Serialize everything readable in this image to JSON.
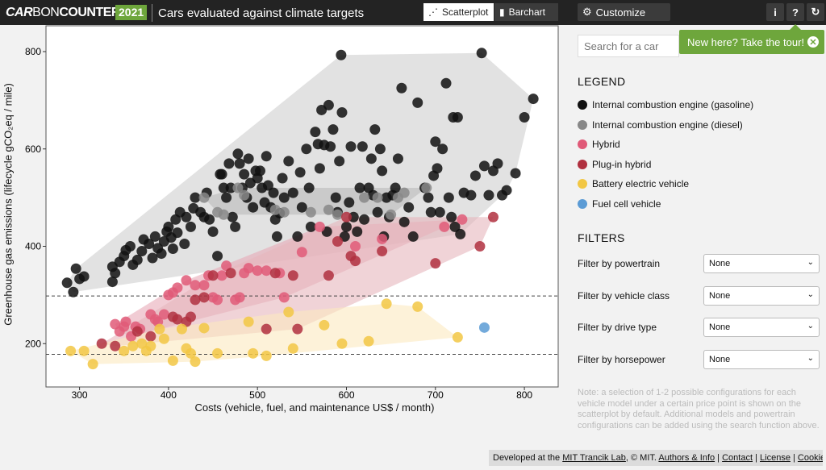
{
  "header": {
    "logo": {
      "part1": "CAR",
      "part2": "BON",
      "part3": "COUNTER"
    },
    "year": "2021",
    "title": "Cars evaluated against climate targets",
    "views": [
      {
        "label": "Scatterplot",
        "icon": "scatter-icon",
        "active": true
      },
      {
        "label": "Barchart",
        "icon": "bar-chart-icon",
        "active": false
      }
    ],
    "customize": "Customize",
    "icons": [
      "info-icon",
      "help-icon",
      "refresh-icon"
    ]
  },
  "tour": {
    "label": "New here? Take the tour!",
    "close": "✕"
  },
  "search": {
    "placeholder": "Search for a car"
  },
  "legend": {
    "title": "LEGEND",
    "items": [
      {
        "label": "Internal combustion engine (gasoline)",
        "color": "#111111"
      },
      {
        "label": "Internal combustion engine (diesel)",
        "color": "#888888"
      },
      {
        "label": "Hybrid",
        "color": "#e05a78"
      },
      {
        "label": "Plug-in hybrid",
        "color": "#b0303f"
      },
      {
        "label": "Battery electric vehicle",
        "color": "#f2c744"
      },
      {
        "label": "Fuel cell vehicle",
        "color": "#5b9bd5"
      }
    ]
  },
  "filters": {
    "title": "FILTERS",
    "items": [
      {
        "label": "Filter by powertrain",
        "value": "None"
      },
      {
        "label": "Filter by vehicle class",
        "value": "None"
      },
      {
        "label": "Filter by drive type",
        "value": "None"
      },
      {
        "label": "Filter by horsepower",
        "value": "None"
      }
    ]
  },
  "note": "Note: a selection of 1-2 possible configurations for each vehicle model under a certain price point is shown on the scatterplot by default. Additional models and powertrain configurations can be added using the search function above.",
  "footer": {
    "prefix": "Developed at the ",
    "lab": "MIT Trancik Lab",
    "mid": ", © MIT. ",
    "links": [
      "Authors & Info",
      "Contact",
      "License",
      "Cookies"
    ]
  },
  "chart_data": {
    "type": "scatter",
    "xlabel": "Costs (vehicle, fuel, and maintenance US$ / month)",
    "ylabel": "Greenhouse gas emissions (lifecycle gCO₂eq / mile)",
    "xlim": [
      236,
      838
    ],
    "ylim": [
      111,
      853
    ],
    "xticks": [
      300,
      400,
      500,
      600,
      700,
      800
    ],
    "yticks": [
      200,
      400,
      600,
      800
    ],
    "reference_lines": [
      298,
      178
    ],
    "grid": false,
    "series": [
      {
        "name": "Internal combustion engine (gasoline)",
        "color": "#111111",
        "hull": "#cfcfcf",
        "points": [
          [
            286,
            325
          ],
          [
            293,
            306
          ],
          [
            296,
            354
          ],
          [
            300,
            333
          ],
          [
            305,
            338
          ],
          [
            337,
            327
          ],
          [
            337,
            358
          ],
          [
            340,
            345
          ],
          [
            345,
            368
          ],
          [
            350,
            380
          ],
          [
            352,
            392
          ],
          [
            357,
            400
          ],
          [
            360,
            362
          ],
          [
            365,
            372
          ],
          [
            370,
            390
          ],
          [
            372,
            414
          ],
          [
            378,
            405
          ],
          [
            382,
            376
          ],
          [
            385,
            420
          ],
          [
            388,
            396
          ],
          [
            392,
            385
          ],
          [
            395,
            410
          ],
          [
            398,
            430
          ],
          [
            400,
            440
          ],
          [
            403,
            418
          ],
          [
            405,
            395
          ],
          [
            408,
            455
          ],
          [
            410,
            428
          ],
          [
            413,
            470
          ],
          [
            418,
            405
          ],
          [
            420,
            460
          ],
          [
            425,
            440
          ],
          [
            428,
            478
          ],
          [
            430,
            500
          ],
          [
            436,
            470
          ],
          [
            440,
            460
          ],
          [
            443,
            510
          ],
          [
            446,
            455
          ],
          [
            450,
            430
          ],
          [
            455,
            380
          ],
          [
            458,
            548
          ],
          [
            460,
            548
          ],
          [
            462,
            520
          ],
          [
            465,
            500
          ],
          [
            468,
            570
          ],
          [
            470,
            520
          ],
          [
            472,
            460
          ],
          [
            475,
            440
          ],
          [
            478,
            590
          ],
          [
            480,
            570
          ],
          [
            483,
            520
          ],
          [
            485,
            548
          ],
          [
            488,
            500
          ],
          [
            490,
            580
          ],
          [
            492,
            530
          ],
          [
            495,
            480
          ],
          [
            498,
            555
          ],
          [
            500,
            540
          ],
          [
            503,
            555
          ],
          [
            505,
            520
          ],
          [
            508,
            490
          ],
          [
            510,
            585
          ],
          [
            512,
            525
          ],
          [
            515,
            480
          ],
          [
            518,
            510
          ],
          [
            520,
            455
          ],
          [
            522,
            420
          ],
          [
            525,
            468
          ],
          [
            528,
            540
          ],
          [
            530,
            500
          ],
          [
            535,
            575
          ],
          [
            540,
            510
          ],
          [
            545,
            420
          ],
          [
            548,
            552
          ],
          [
            550,
            480
          ],
          [
            555,
            600
          ],
          [
            558,
            520
          ],
          [
            560,
            440
          ],
          [
            565,
            635
          ],
          [
            568,
            610
          ],
          [
            570,
            560
          ],
          [
            572,
            680
          ],
          [
            575,
            608
          ],
          [
            578,
            430
          ],
          [
            580,
            690
          ],
          [
            582,
            605
          ],
          [
            585,
            640
          ],
          [
            588,
            500
          ],
          [
            590,
            470
          ],
          [
            592,
            575
          ],
          [
            594,
            793
          ],
          [
            595,
            675
          ],
          [
            598,
            420
          ],
          [
            600,
            440
          ],
          [
            603,
            490
          ],
          [
            605,
            605
          ],
          [
            608,
            460
          ],
          [
            612,
            430
          ],
          [
            615,
            520
          ],
          [
            618,
            605
          ],
          [
            620,
            455
          ],
          [
            625,
            520
          ],
          [
            628,
            580
          ],
          [
            630,
            505
          ],
          [
            632,
            640
          ],
          [
            635,
            470
          ],
          [
            638,
            600
          ],
          [
            640,
            555
          ],
          [
            642,
            420
          ],
          [
            645,
            500
          ],
          [
            648,
            460
          ],
          [
            652,
            505
          ],
          [
            655,
            520
          ],
          [
            658,
            580
          ],
          [
            662,
            725
          ],
          [
            665,
            450
          ],
          [
            670,
            480
          ],
          [
            675,
            420
          ],
          [
            680,
            695
          ],
          [
            688,
            520
          ],
          [
            692,
            500
          ],
          [
            695,
            470
          ],
          [
            698,
            545
          ],
          [
            700,
            615
          ],
          [
            702,
            560
          ],
          [
            705,
            470
          ],
          [
            708,
            600
          ],
          [
            712,
            735
          ],
          [
            715,
            500
          ],
          [
            718,
            460
          ],
          [
            720,
            665
          ],
          [
            722,
            440
          ],
          [
            725,
            665
          ],
          [
            728,
            425
          ],
          [
            732,
            510
          ],
          [
            740,
            505
          ],
          [
            745,
            545
          ],
          [
            752,
            797
          ],
          [
            755,
            565
          ],
          [
            760,
            505
          ],
          [
            765,
            555
          ],
          [
            770,
            570
          ],
          [
            775,
            505
          ],
          [
            780,
            515
          ],
          [
            790,
            550
          ],
          [
            800,
            665
          ],
          [
            810,
            703
          ]
        ]
      },
      {
        "name": "Internal combustion engine (diesel)",
        "color": "#888888",
        "hull": "#bbbbbb",
        "points": [
          [
            440,
            500
          ],
          [
            455,
            470
          ],
          [
            462,
            465
          ],
          [
            478,
            520
          ],
          [
            485,
            505
          ],
          [
            520,
            475
          ],
          [
            530,
            470
          ],
          [
            560,
            470
          ],
          [
            580,
            475
          ],
          [
            590,
            465
          ],
          [
            620,
            500
          ],
          [
            635,
            500
          ],
          [
            650,
            465
          ],
          [
            658,
            500
          ],
          [
            665,
            510
          ],
          [
            690,
            520
          ]
        ]
      },
      {
        "name": "Hybrid",
        "color": "#e05a78",
        "hull": "#e8aab8",
        "points": [
          [
            340,
            240
          ],
          [
            345,
            225
          ],
          [
            350,
            235
          ],
          [
            352,
            245
          ],
          [
            358,
            215
          ],
          [
            363,
            235
          ],
          [
            368,
            230
          ],
          [
            380,
            260
          ],
          [
            385,
            250
          ],
          [
            388,
            245
          ],
          [
            395,
            260
          ],
          [
            400,
            300
          ],
          [
            405,
            305
          ],
          [
            410,
            315
          ],
          [
            420,
            330
          ],
          [
            430,
            320
          ],
          [
            440,
            320
          ],
          [
            445,
            340
          ],
          [
            450,
            295
          ],
          [
            455,
            290
          ],
          [
            460,
            340
          ],
          [
            465,
            360
          ],
          [
            475,
            290
          ],
          [
            480,
            295
          ],
          [
            485,
            345
          ],
          [
            490,
            355
          ],
          [
            500,
            350
          ],
          [
            510,
            350
          ],
          [
            525,
            345
          ],
          [
            530,
            295
          ],
          [
            550,
            388
          ],
          [
            570,
            440
          ],
          [
            610,
            400
          ],
          [
            640,
            415
          ],
          [
            710,
            440
          ],
          [
            730,
            455
          ]
        ]
      },
      {
        "name": "Plug-in hybrid",
        "color": "#b0303f",
        "hull": "#e6b5bc",
        "points": [
          [
            325,
            200
          ],
          [
            340,
            195
          ],
          [
            365,
            225
          ],
          [
            380,
            215
          ],
          [
            405,
            255
          ],
          [
            410,
            250
          ],
          [
            420,
            245
          ],
          [
            425,
            255
          ],
          [
            430,
            290
          ],
          [
            440,
            295
          ],
          [
            450,
            340
          ],
          [
            470,
            345
          ],
          [
            510,
            230
          ],
          [
            520,
            345
          ],
          [
            540,
            340
          ],
          [
            545,
            230
          ],
          [
            580,
            340
          ],
          [
            590,
            410
          ],
          [
            605,
            380
          ],
          [
            610,
            370
          ],
          [
            640,
            390
          ],
          [
            700,
            365
          ],
          [
            750,
            400
          ],
          [
            765,
            460
          ],
          [
            600,
            460
          ]
        ]
      },
      {
        "name": "Battery electric vehicle",
        "color": "#f2c744",
        "hull": "#fbe9bf",
        "points": [
          [
            290,
            185
          ],
          [
            305,
            185
          ],
          [
            315,
            158
          ],
          [
            350,
            185
          ],
          [
            360,
            195
          ],
          [
            370,
            200
          ],
          [
            375,
            185
          ],
          [
            380,
            195
          ],
          [
            390,
            230
          ],
          [
            395,
            210
          ],
          [
            405,
            165
          ],
          [
            415,
            230
          ],
          [
            420,
            190
          ],
          [
            425,
            180
          ],
          [
            430,
            163
          ],
          [
            440,
            232
          ],
          [
            455,
            180
          ],
          [
            490,
            245
          ],
          [
            495,
            180
          ],
          [
            510,
            175
          ],
          [
            535,
            265
          ],
          [
            540,
            190
          ],
          [
            575,
            238
          ],
          [
            595,
            200
          ],
          [
            625,
            205
          ],
          [
            645,
            282
          ],
          [
            680,
            276
          ],
          [
            725,
            213
          ]
        ]
      },
      {
        "name": "Fuel cell vehicle",
        "color": "#5b9bd5",
        "hull": null,
        "points": [
          [
            755,
            233
          ]
        ]
      }
    ]
  }
}
